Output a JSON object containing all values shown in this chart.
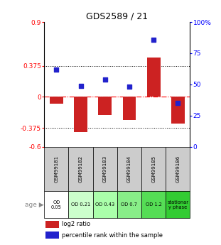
{
  "title": "GDS2589 / 21",
  "samples": [
    "GSM99181",
    "GSM99182",
    "GSM99183",
    "GSM99184",
    "GSM99185",
    "GSM99186"
  ],
  "log2_ratio": [
    -0.08,
    -0.42,
    -0.22,
    -0.28,
    0.47,
    -0.32
  ],
  "percentile_rank": [
    62,
    49,
    54,
    48,
    86,
    35
  ],
  "age_labels": [
    "OD\n0.05",
    "OD 0.21",
    "OD 0.43",
    "OD 0.7",
    "OD 1.2",
    "stationar\ny phase"
  ],
  "age_colors": [
    "#ffffff",
    "#ccffcc",
    "#aaffaa",
    "#88ee88",
    "#55dd55",
    "#33cc33"
  ],
  "ylim_left": [
    -0.6,
    0.9
  ],
  "ylim_right": [
    0,
    100
  ],
  "yticks_left": [
    -0.6,
    -0.375,
    0.0,
    0.375,
    0.9
  ],
  "yticks_left_labels": [
    "-0.6",
    "-0.375",
    "0",
    "0.375",
    "0.9"
  ],
  "yticks_right": [
    0,
    25,
    50,
    75,
    100
  ],
  "yticks_right_labels": [
    "0",
    "25",
    "50",
    "75",
    "100%"
  ],
  "hlines": [
    0.375,
    -0.375
  ],
  "bar_color_red": "#cc2222",
  "bar_color_blue": "#2222cc",
  "sample_bg_color": "#cccccc",
  "legend_red": "log2 ratio",
  "legend_blue": "percentile rank within the sample"
}
